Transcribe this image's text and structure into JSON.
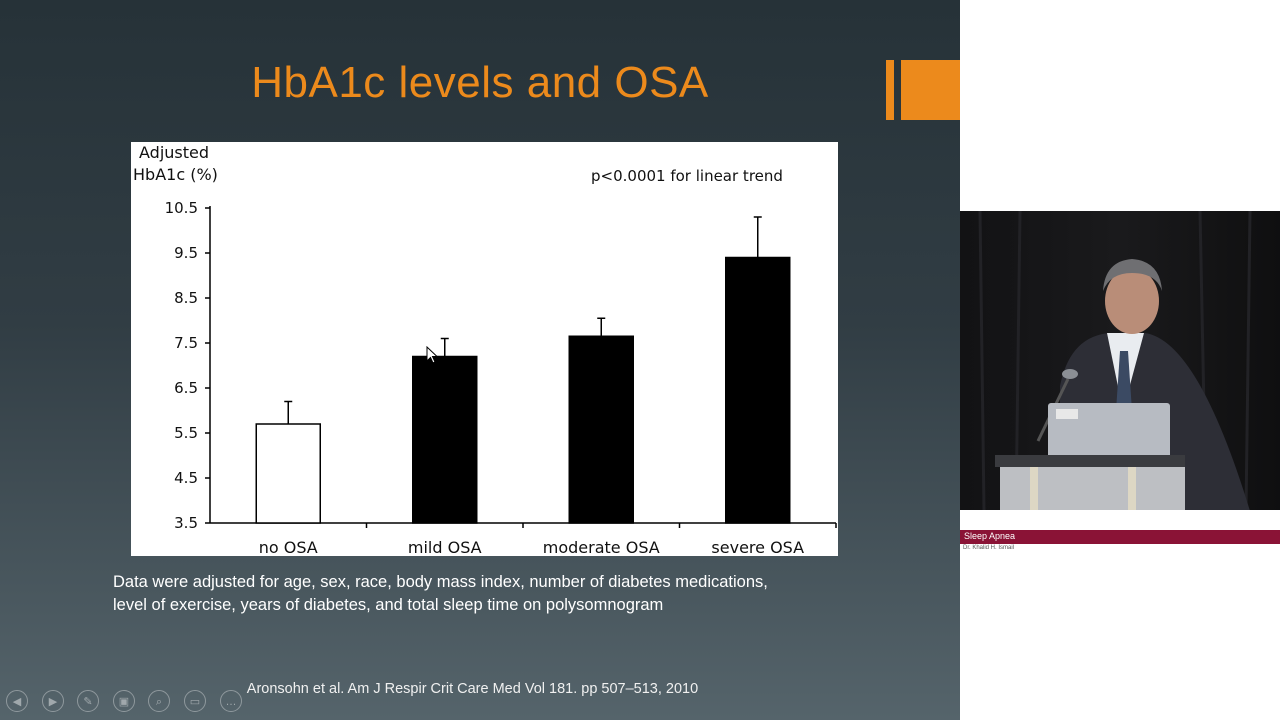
{
  "slide": {
    "title": "HbA1c levels and OSA",
    "footnote_line1": "Data were adjusted for age, sex, race, body mass index, number of diabetes medications,",
    "footnote_line2": "level of exercise, years of diabetes, and total sleep time on polysomnogram",
    "citation": "Aronsohn et al. Am J Respir Crit Care Med Vol 181. pp 507–513, 2010",
    "accent_color": "#ec8a1c"
  },
  "chart_data": {
    "type": "bar",
    "ylabel_line1": "Adjusted",
    "ylabel_line2": "HbA1c (%)",
    "annotation": "p<0.0001 for linear trend",
    "categories": [
      "no OSA",
      "mild OSA",
      "moderate OSA",
      "severe OSA"
    ],
    "values": [
      5.7,
      7.2,
      7.65,
      9.4
    ],
    "error_upper": [
      6.2,
      7.6,
      8.05,
      10.3
    ],
    "bar_fill": [
      "#ffffff",
      "#000000",
      "#000000",
      "#000000"
    ],
    "yticks": [
      "3.5",
      "4.5",
      "5.5",
      "6.5",
      "7.5",
      "8.5",
      "9.5",
      "10.5"
    ],
    "ylim": [
      3.5,
      10.5
    ],
    "grid": false
  },
  "presenter_controls": {
    "icons": [
      "previous-icon",
      "next-icon",
      "pen-icon",
      "slides-icon",
      "zoom-icon",
      "subtitles-icon",
      "more-icon"
    ],
    "glyphs": [
      "◀",
      "▶",
      "✎",
      "▣",
      "⌕",
      "▭",
      "…"
    ]
  },
  "video": {
    "lower_third_title": "Sleep Apnea",
    "lower_third_name": "Dr. Khalid H. Ismail",
    "lower_third_color": "#8a1336"
  }
}
